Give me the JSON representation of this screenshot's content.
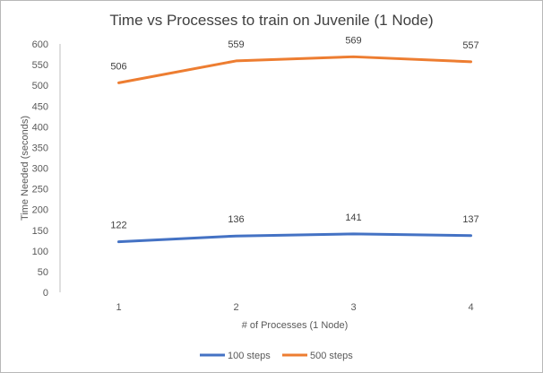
{
  "chart_data": {
    "type": "line",
    "title": "Time vs Processes to train on Juvenile (1 Node)",
    "xlabel": "# of Processes (1 Node)",
    "ylabel": "Time Needed  (seconds)",
    "categories": [
      "1",
      "2",
      "3",
      "4"
    ],
    "ylim": [
      0,
      600
    ],
    "yticks": [
      0,
      50,
      100,
      150,
      200,
      250,
      300,
      350,
      400,
      450,
      500,
      550,
      600
    ],
    "grid": false,
    "legend_position": "bottom",
    "series": [
      {
        "name": "100 steps",
        "color": "#4472C4",
        "values": [
          122,
          136,
          141,
          137
        ]
      },
      {
        "name": "500 steps",
        "color": "#ED7D31",
        "values": [
          506,
          559,
          569,
          557
        ]
      }
    ]
  }
}
